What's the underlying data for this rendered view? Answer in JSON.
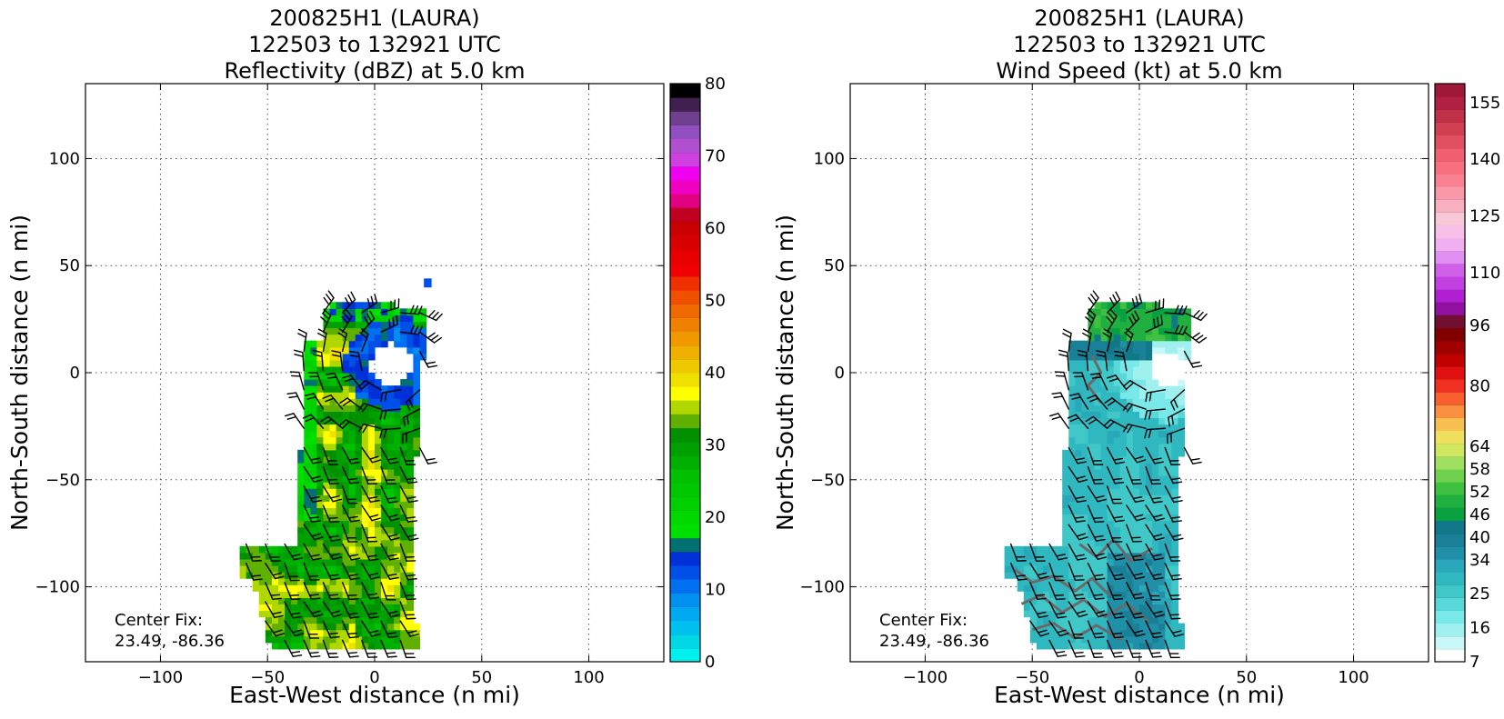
{
  "chart_data": [
    {
      "type": "heatmap",
      "title_lines": [
        "200825H1 (LAURA)",
        "122503 to 132921 UTC",
        "Reflectivity (dBZ) at 5.0 km"
      ],
      "xlabel": "East-West distance (n mi)",
      "ylabel": "North-South distance (n mi)",
      "xlim": [
        -135,
        135
      ],
      "ylim": [
        -135,
        135
      ],
      "xticks": [
        -100,
        -50,
        0,
        50,
        100
      ],
      "yticks": [
        100,
        50,
        0,
        -50,
        -100
      ],
      "xtick_labels": [
        "−100",
        "−50",
        "0",
        "50",
        "100"
      ],
      "ytick_labels": [
        "100",
        "50",
        "0",
        "−50",
        "−100"
      ],
      "grid": true,
      "annotation_lines": [
        "Center Fix:",
        "23.49, -86.36"
      ],
      "colorbar": {
        "min": 0,
        "max": 80,
        "ticks": [
          0,
          10,
          20,
          30,
          40,
          50,
          60,
          70,
          80
        ],
        "colors": [
          "#00f0f0",
          "#00d8e8",
          "#00c0f0",
          "#00a8f0",
          "#0090f0",
          "#0070f0",
          "#0050e8",
          "#0030d8",
          "#007070",
          "#00e000",
          "#00d800",
          "#00d000",
          "#00c800",
          "#00c000",
          "#00b000",
          "#00a000",
          "#009000",
          "#60b000",
          "#b0d800",
          "#ffff00",
          "#f0e000",
          "#f0c800",
          "#f0b000",
          "#f09800",
          "#f08000",
          "#f06800",
          "#f05000",
          "#f03000",
          "#f00000",
          "#e80000",
          "#d80000",
          "#c80000",
          "#c00020",
          "#e00080",
          "#f000c0",
          "#f000f0",
          "#d040e0",
          "#b050d0",
          "#9050c0",
          "#704090",
          "#402050",
          "#000000"
        ]
      },
      "field": "reflectivity"
    },
    {
      "type": "heatmap",
      "title_lines": [
        "200825H1 (LAURA)",
        "122503 to 132921 UTC",
        "Wind Speed (kt) at 5.0 km"
      ],
      "xlabel": "East-West distance (n mi)",
      "ylabel": "North-South distance (n mi)",
      "xlim": [
        -135,
        135
      ],
      "ylim": [
        -135,
        135
      ],
      "xticks": [
        -100,
        -50,
        0,
        50,
        100
      ],
      "yticks": [
        100,
        50,
        0,
        -50,
        -100
      ],
      "xtick_labels": [
        "−100",
        "−50",
        "0",
        "50",
        "100"
      ],
      "ytick_labels": [
        "100",
        "50",
        "0",
        "−50",
        "−100"
      ],
      "grid": true,
      "annotation_lines": [
        "Center Fix:",
        "23.49, -86.36"
      ],
      "colorbar": {
        "min": 7,
        "max": 160,
        "ticks": [
          7,
          16,
          25,
          34,
          40,
          46,
          52,
          58,
          64,
          80,
          96,
          110,
          125,
          140,
          155
        ],
        "colors": [
          "#ffffff",
          "#c8f8f8",
          "#a0f0f0",
          "#78e8e8",
          "#58d8d8",
          "#40c8c8",
          "#30b8c0",
          "#28a8b8",
          "#2090a8",
          "#1a8098",
          "#107888",
          "#08a040",
          "#20b040",
          "#40c040",
          "#70d050",
          "#a0e060",
          "#d0e860",
          "#f0e060",
          "#f8c050",
          "#f89040",
          "#f86030",
          "#f03020",
          "#e01010",
          "#c00000",
          "#a00000",
          "#800000",
          "#701030",
          "#9010a0",
          "#b020d0",
          "#c040e0",
          "#d060e8",
          "#e090f0",
          "#f0b0f0",
          "#f8c0e8",
          "#f8c8d8",
          "#f8b0c0",
          "#f898a8",
          "#f88090",
          "#f87080",
          "#f06070",
          "#e05060",
          "#d04050",
          "#c03048",
          "#b02040",
          "#a01838"
        ]
      },
      "field": "wind"
    }
  ]
}
